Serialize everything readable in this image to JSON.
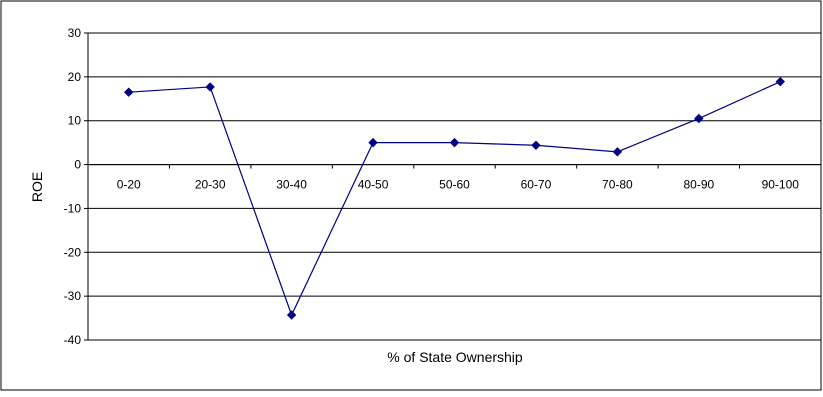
{
  "chart_data": {
    "type": "line",
    "title": "",
    "xlabel": "% of State Ownership",
    "ylabel": "ROE",
    "categories": [
      "0-20",
      "20-30",
      "30-40",
      "40-50",
      "50-60",
      "60-70",
      "70-80",
      "80-90",
      "90-100"
    ],
    "series": [
      {
        "values": [
          16.5,
          17.7,
          -34.3,
          5.0,
          5.0,
          4.4,
          2.9,
          10.5,
          18.9
        ],
        "color": "#000080",
        "marker": "diamond"
      }
    ],
    "ylim": [
      -40,
      30
    ],
    "yticks": [
      30,
      20,
      10,
      0,
      -10,
      -20,
      -30,
      -40
    ],
    "grid": true,
    "legend": "none"
  }
}
